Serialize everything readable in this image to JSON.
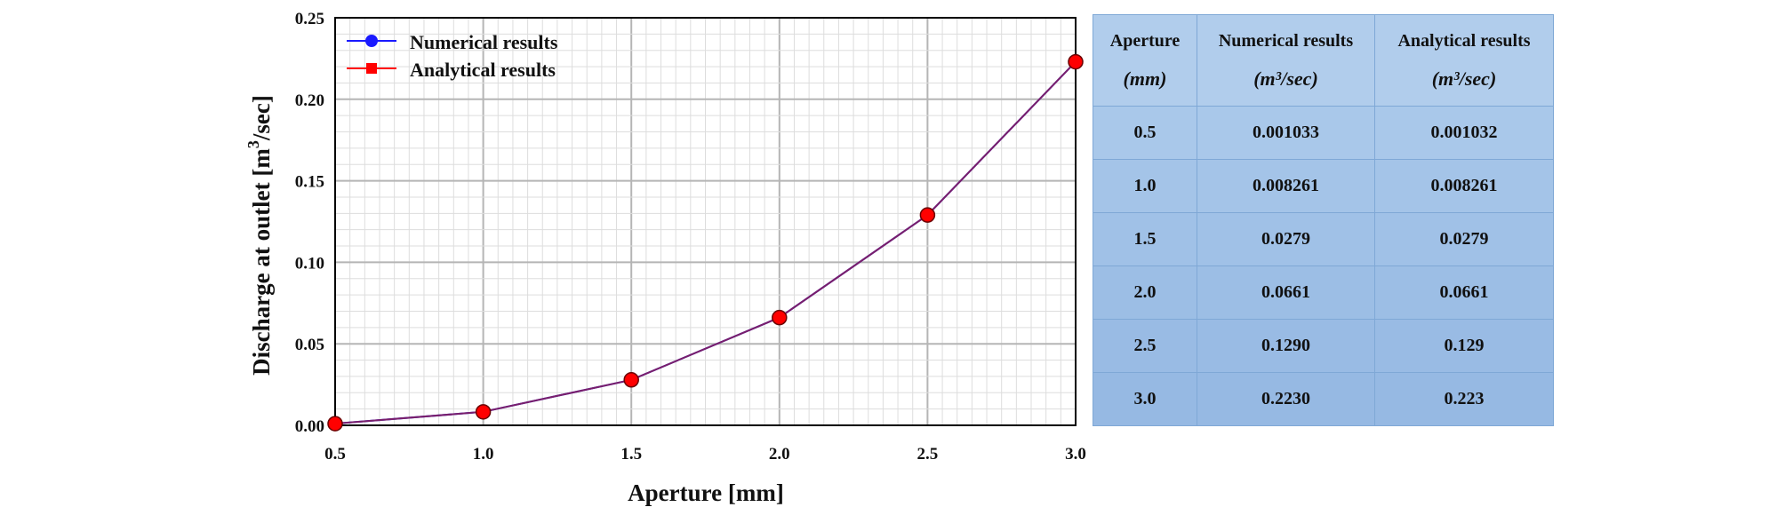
{
  "chart_data": {
    "type": "line",
    "xlabel": "Aperture [mm]",
    "ylabel_main": "Discharge at outlet [m",
    "ylabel_sup": "3",
    "ylabel_tail": "/sec]",
    "x": [
      0.5,
      1.0,
      1.5,
      2.0,
      2.5,
      3.0
    ],
    "xlim": [
      0.5,
      3.0
    ],
    "ylim": [
      0,
      0.25
    ],
    "xticks": [
      "0.5",
      "1.0",
      "1.5",
      "2.0",
      "2.5",
      "3.0"
    ],
    "yticks": [
      "0.00",
      "0.05",
      "0.10",
      "0.15",
      "0.20",
      "0.25"
    ],
    "grid": true,
    "legend_position": "top-left",
    "series": [
      {
        "name": "Numerical results",
        "values": [
          0.001033,
          0.008261,
          0.0279,
          0.0661,
          0.129,
          0.223
        ],
        "color": "#1a1aff",
        "marker": "circle"
      },
      {
        "name": "Analytical results",
        "values": [
          0.001032,
          0.008261,
          0.0279,
          0.0661,
          0.129,
          0.223
        ],
        "color": "#ff0000",
        "marker": "square"
      }
    ],
    "overlay_line_color": "#7a1f6a"
  },
  "table": {
    "headers": [
      {
        "label": "Aperture",
        "unit": "(mm)"
      },
      {
        "label": "Numerical results",
        "unit": "(m³/sec)"
      },
      {
        "label": "Analytical results",
        "unit": "(m³/sec)"
      }
    ],
    "rows": [
      [
        "0.5",
        "0.001033",
        "0.001032"
      ],
      [
        "1.0",
        "0.008261",
        "0.008261"
      ],
      [
        "1.5",
        "0.0279",
        "0.0279"
      ],
      [
        "2.0",
        "0.0661",
        "0.0661"
      ],
      [
        "2.5",
        "0.1290",
        "0.129"
      ],
      [
        "3.0",
        "0.2230",
        "0.223"
      ]
    ]
  }
}
